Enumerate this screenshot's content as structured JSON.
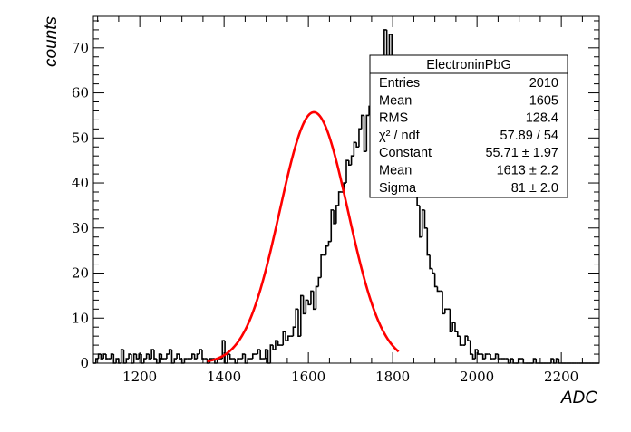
{
  "chart_data": {
    "type": "histogram",
    "title": "",
    "xlabel": "ADC",
    "ylabel": "counts",
    "xlim": [
      1090,
      2290
    ],
    "ylim": [
      0,
      77
    ],
    "grid": false,
    "x_ticks": [
      1200,
      1400,
      1600,
      1800,
      2000,
      2200
    ],
    "y_ticks": [
      0,
      10,
      20,
      30,
      40,
      50,
      60,
      70
    ],
    "bin_width": 6,
    "bin_edge_start": 1090,
    "counts": [
      0,
      1,
      2,
      1,
      2,
      1,
      1,
      2,
      0,
      1,
      0,
      3,
      0,
      1,
      2,
      0,
      2,
      1,
      2,
      0,
      1,
      2,
      1,
      3,
      1,
      0,
      2,
      1,
      1,
      2,
      3,
      0,
      1,
      2,
      1,
      0,
      1,
      1,
      1,
      2,
      1,
      2,
      3,
      1,
      1,
      0,
      1,
      1,
      0,
      1,
      1,
      5,
      0,
      2,
      1,
      1,
      0,
      1,
      1,
      2,
      0,
      1,
      1,
      2,
      2,
      3,
      1,
      1,
      3,
      0,
      4,
      3,
      5,
      4,
      4,
      7,
      5,
      6,
      6,
      8,
      12,
      6,
      15,
      11,
      14,
      13,
      16,
      12,
      17,
      19,
      24,
      24,
      26,
      27,
      34,
      31,
      35,
      38,
      38,
      40,
      45,
      44,
      46,
      49,
      48,
      52,
      55,
      47,
      55,
      57,
      56,
      55,
      67,
      63,
      64,
      74,
      55,
      73,
      63,
      54,
      61,
      51,
      54,
      50,
      46,
      41,
      45,
      43,
      35,
      28,
      34,
      30,
      24,
      21,
      20,
      17,
      16,
      16,
      11,
      12,
      12,
      7,
      9,
      7,
      6,
      4,
      4,
      6,
      5,
      2,
      1,
      3,
      2,
      2,
      1,
      2,
      2,
      1,
      1,
      2,
      1,
      1,
      1,
      1,
      0,
      1,
      0,
      0,
      1,
      1,
      0,
      0,
      0,
      0,
      1,
      0,
      0,
      0,
      0,
      0,
      0,
      1,
      0,
      1,
      0,
      0,
      0,
      0,
      0,
      0,
      0,
      0,
      0,
      0,
      0,
      0,
      0,
      0,
      0,
      0,
      0,
      0,
      0,
      0,
      2,
      0,
      0,
      0,
      0,
      0,
      0,
      0,
      0,
      0,
      0,
      0,
      1,
      0,
      0,
      0,
      0,
      0,
      0,
      0,
      1,
      0,
      1,
      0,
      0,
      0
    ],
    "fit": {
      "function": "gaus",
      "constant": 55.71,
      "mean": 1613,
      "sigma": 81,
      "x_range": [
        1360,
        1815
      ],
      "color": "#ff0000"
    },
    "stats_box": {
      "title": "ElectroninPbG",
      "rows": [
        {
          "label": "Entries",
          "value": "2010"
        },
        {
          "label": "Mean",
          "value": "1605"
        },
        {
          "label": "RMS",
          "value": "128.4"
        },
        {
          "label": "χ² / ndf",
          "value": "57.89 / 54"
        },
        {
          "label": "Constant",
          "value": "55.71 ± 1.97"
        },
        {
          "label": "Mean",
          "value": "1613 ± 2.2"
        },
        {
          "label": "Sigma",
          "value": "81 ± 2.0"
        }
      ]
    }
  }
}
